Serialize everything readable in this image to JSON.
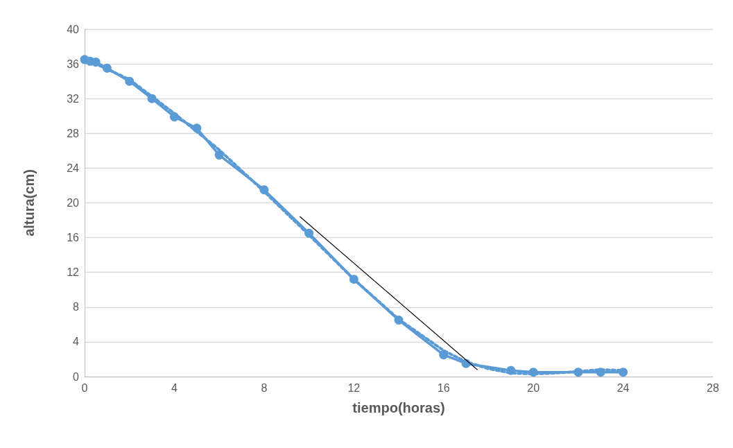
{
  "chart_data": {
    "type": "line",
    "xlabel": "tiempo(horas)",
    "ylabel": "altura(cm)",
    "xlim": [
      0,
      28
    ],
    "xticks": [
      0,
      4,
      8,
      12,
      16,
      20,
      24,
      28
    ],
    "ylim": [
      0,
      40
    ],
    "yticks": [
      0,
      4,
      8,
      12,
      16,
      20,
      24,
      28,
      32,
      36,
      40
    ],
    "grid": "y",
    "series": [
      {
        "color": "#5b9bd5",
        "marker": "circle",
        "line_style": "solid",
        "x": [
          0,
          0.25,
          0.5,
          1,
          2,
          3,
          4,
          5,
          6,
          8,
          10,
          12,
          14,
          16,
          17,
          19,
          20,
          22,
          23,
          24
        ],
        "values": [
          36.5,
          36.3,
          36.2,
          35.5,
          34,
          32,
          29.9,
          28.6,
          25.5,
          21.5,
          16.5,
          11.2,
          6.5,
          2.5,
          1.5,
          0.7,
          0.5,
          0.5,
          0.5,
          0.5
        ]
      },
      {
        "color": "#5b9bd5",
        "marker": "none",
        "line_style": "dotted",
        "x": [
          0,
          2,
          4,
          6,
          8,
          10,
          12,
          14,
          16,
          17,
          18,
          19,
          20,
          21,
          22,
          23,
          24
        ],
        "values": [
          36.6,
          34.2,
          30.3,
          26.1,
          21.3,
          16.3,
          11.2,
          6.6,
          3.0,
          1.7,
          0.9,
          0.4,
          0.3,
          0.4,
          0.6,
          0.8,
          0.7
        ]
      },
      {
        "color": "#000000",
        "marker": "none",
        "line_style": "solid",
        "x": [
          9.6,
          17.5
        ],
        "values": [
          18.4,
          0.8
        ]
      }
    ]
  }
}
